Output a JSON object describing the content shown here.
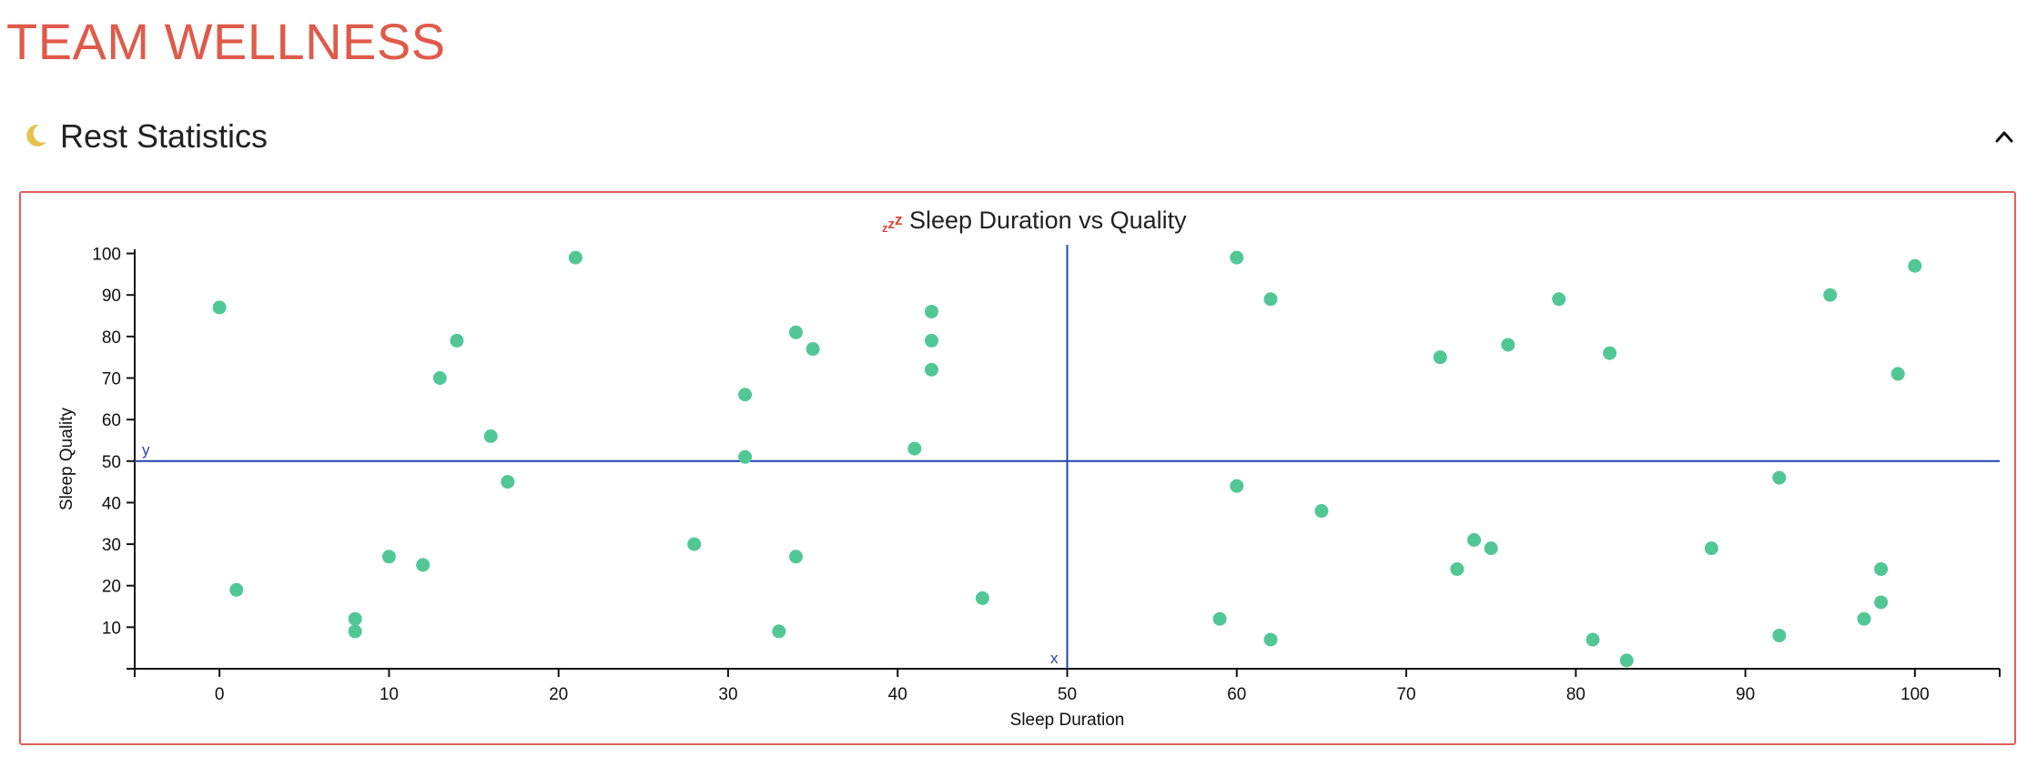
{
  "app": {
    "title": "TEAM WELLNESS"
  },
  "section": {
    "title": "Rest Statistics",
    "icon": "moon-icon",
    "collapse_icon": "chevron-up-icon"
  },
  "colors": {
    "brand": "#e05a4a",
    "point": "#52c796",
    "reference_line": "#2442b0",
    "moon": "#e6c14b",
    "card_border": "#e0605a"
  },
  "chart_data": {
    "type": "scatter",
    "title": "Sleep Duration vs Quality",
    "title_icon": "zzz-icon",
    "xlabel": "Sleep Duration",
    "ylabel": "Sleep Quality",
    "xlim": [
      -5,
      105
    ],
    "ylim": [
      0,
      101
    ],
    "x_ticks": [
      0,
      10,
      20,
      30,
      40,
      50,
      60,
      70,
      80,
      90,
      100
    ],
    "y_ticks": [
      10,
      20,
      30,
      40,
      50,
      60,
      70,
      80,
      90,
      100
    ],
    "grid": false,
    "reference_lines": [
      {
        "axis": "x",
        "value": 50,
        "label": "x"
      },
      {
        "axis": "y",
        "value": 50,
        "label": "y"
      }
    ],
    "points": [
      {
        "x": 0,
        "y": 87
      },
      {
        "x": 1,
        "y": 19
      },
      {
        "x": 8,
        "y": 12
      },
      {
        "x": 8,
        "y": 9
      },
      {
        "x": 10,
        "y": 27
      },
      {
        "x": 12,
        "y": 25
      },
      {
        "x": 13,
        "y": 70
      },
      {
        "x": 14,
        "y": 79
      },
      {
        "x": 16,
        "y": 56
      },
      {
        "x": 17,
        "y": 45
      },
      {
        "x": 21,
        "y": 99
      },
      {
        "x": 28,
        "y": 30
      },
      {
        "x": 31,
        "y": 66
      },
      {
        "x": 31,
        "y": 51
      },
      {
        "x": 33,
        "y": 9
      },
      {
        "x": 34,
        "y": 81
      },
      {
        "x": 34,
        "y": 27
      },
      {
        "x": 35,
        "y": 77
      },
      {
        "x": 41,
        "y": 53
      },
      {
        "x": 42,
        "y": 86
      },
      {
        "x": 42,
        "y": 79
      },
      {
        "x": 42,
        "y": 72
      },
      {
        "x": 45,
        "y": 17
      },
      {
        "x": 59,
        "y": 12
      },
      {
        "x": 60,
        "y": 99
      },
      {
        "x": 60,
        "y": 44
      },
      {
        "x": 62,
        "y": 89
      },
      {
        "x": 62,
        "y": 7
      },
      {
        "x": 65,
        "y": 38
      },
      {
        "x": 72,
        "y": 75
      },
      {
        "x": 73,
        "y": 24
      },
      {
        "x": 74,
        "y": 31
      },
      {
        "x": 75,
        "y": 29
      },
      {
        "x": 76,
        "y": 78
      },
      {
        "x": 79,
        "y": 89
      },
      {
        "x": 81,
        "y": 7
      },
      {
        "x": 82,
        "y": 76
      },
      {
        "x": 83,
        "y": 2
      },
      {
        "x": 88,
        "y": 29
      },
      {
        "x": 92,
        "y": 46
      },
      {
        "x": 92,
        "y": 8
      },
      {
        "x": 95,
        "y": 90
      },
      {
        "x": 97,
        "y": 12
      },
      {
        "x": 98,
        "y": 24
      },
      {
        "x": 98,
        "y": 16
      },
      {
        "x": 99,
        "y": 71
      },
      {
        "x": 100,
        "y": 97
      }
    ]
  }
}
